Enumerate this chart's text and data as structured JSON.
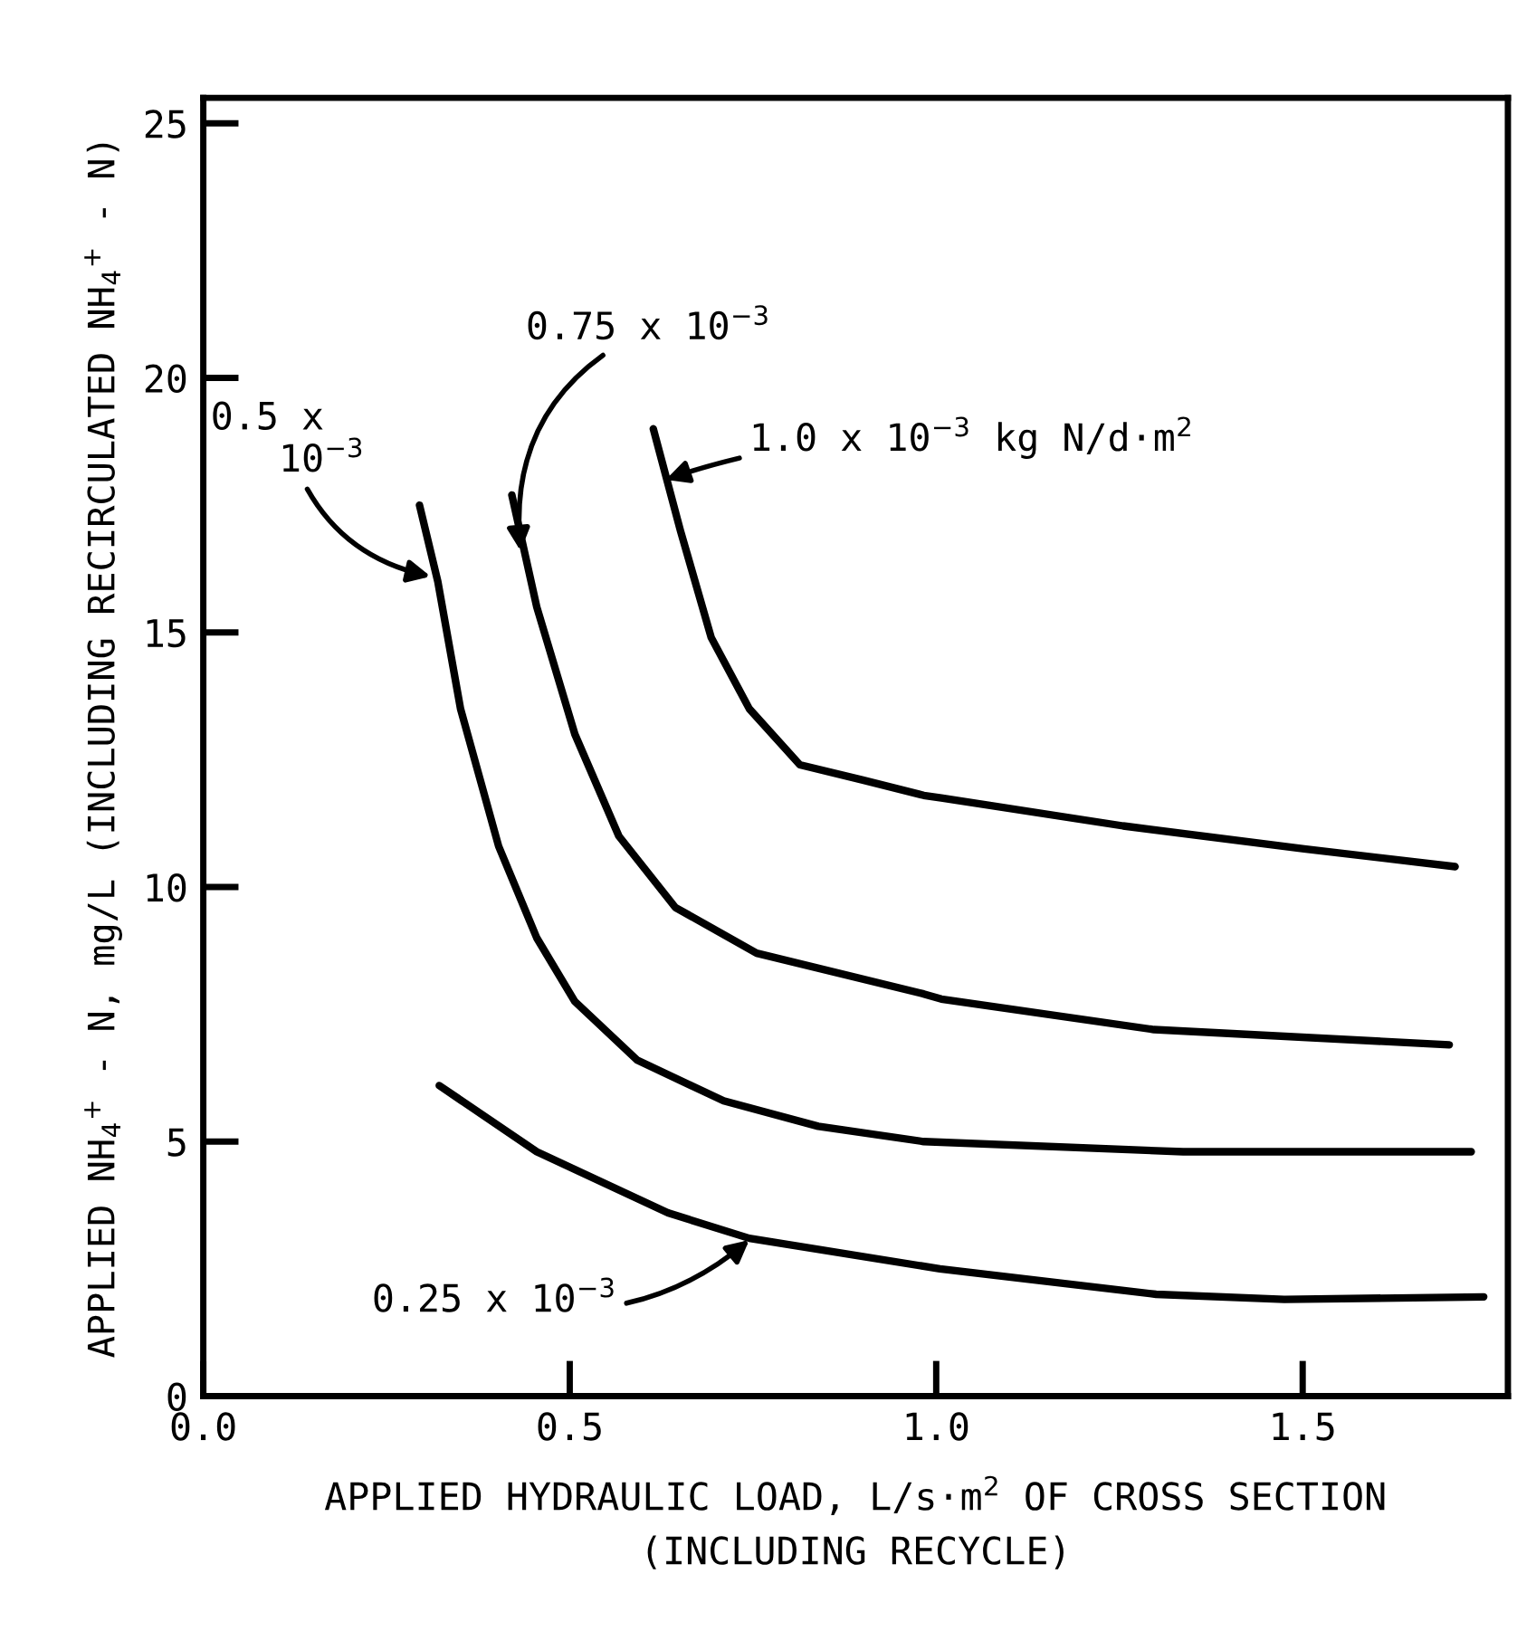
{
  "chart_data": {
    "type": "line",
    "xlabel": "APPLIED HYDRAULIC LOAD, L/s·m$^{2}$ OF CROSS SECTION\n(INCLUDING RECYCLE)",
    "ylabel": "APPLIED NH$_{4}$$^{+}$ - N, mg/L (INCLUDING RECIRCULATED NH$_{4}$$^{+}$ - N)",
    "xlim": [
      0,
      1.78
    ],
    "ylim": [
      0,
      25.5
    ],
    "xticks": [
      {
        "value": 0,
        "label": "0.0"
      },
      0.5,
      {
        "value": 1,
        "label": "1.0"
      },
      1.5
    ],
    "yticks": [
      0,
      5,
      10,
      15,
      20,
      25
    ],
    "grid": false,
    "legend": false,
    "marker": "none",
    "line_style": "solid",
    "series": [
      {
        "color": "#000000",
        "x": [
          0.614,
          0.651,
          0.693,
          0.745,
          0.814,
          0.9,
          0.983,
          1.007,
          1.255,
          1.502,
          1.708
        ],
        "values": [
          19.0,
          17.0,
          14.9,
          13.5,
          12.4,
          12.1,
          11.8,
          11.75,
          11.2,
          10.75,
          10.4
        ]
      },
      {
        "color": "#000000",
        "x": [
          0.421,
          0.455,
          0.507,
          0.567,
          0.644,
          0.755,
          0.983,
          1.007,
          1.297,
          1.7
        ],
        "values": [
          17.7,
          15.5,
          13.0,
          11.0,
          9.6,
          8.7,
          7.9,
          7.8,
          7.2,
          6.9
        ]
      },
      {
        "color": "#000000",
        "x": [
          0.295,
          0.32,
          0.351,
          0.403,
          0.455,
          0.507,
          0.592,
          0.71,
          0.839,
          0.983,
          1.337,
          1.73
        ],
        "values": [
          17.5,
          16.0,
          13.5,
          10.8,
          9.0,
          7.75,
          6.6,
          5.8,
          5.3,
          5.0,
          4.8,
          4.8
        ]
      },
      {
        "color": "#000000",
        "x": [
          0.322,
          0.455,
          0.634,
          0.745,
          1.005,
          1.3,
          1.475,
          1.747
        ],
        "values": [
          6.1,
          4.8,
          3.6,
          3.1,
          2.5,
          2.0,
          1.9,
          1.95
        ]
      }
    ],
    "annotations": [
      {
        "text": "0.5 x\n   10$^{−3}$",
        "x": 0.31,
        "y": 16.1
      },
      {
        "text": "0.75 x 10$^{−3}$",
        "x": 0.433,
        "y": 16.6
      },
      {
        "text": "1.0 x 10$^{−3}$ kg N/d·m$^{2}$",
        "x": 0.631,
        "y": 18.0
      },
      {
        "text": "0.25 x 10$^{−3}$",
        "x": 0.745,
        "y": 3.07
      }
    ]
  }
}
